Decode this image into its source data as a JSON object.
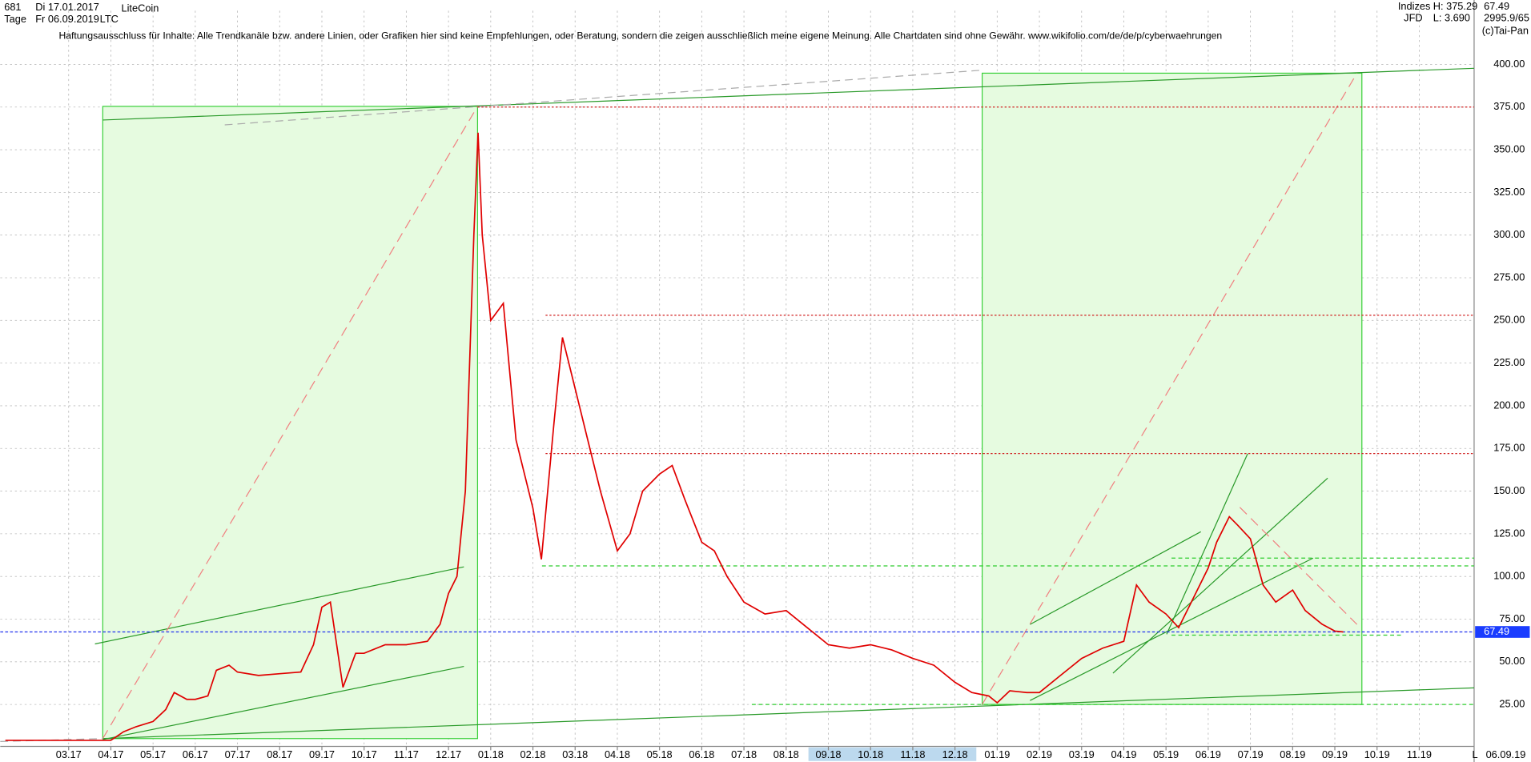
{
  "header": {
    "count": "681",
    "start": "Di 17.01.2017",
    "period": "Tage",
    "end": "Fr 06.09.2019",
    "name": "LiteCoin",
    "symbol": "LTC",
    "group": "Indizes",
    "source": "JFD",
    "high": "H: 375.29",
    "low": "L: 3.690",
    "volume": "2995.9/65",
    "copyright": "(c)Tai-Pan",
    "disclaimer": "Haftungsausschluss für Inhalte: Alle Trendkanäle bzw. andere Linien, oder Grafiken hier sind keine Empfehlungen, oder Beratung, sondern die zeigen ausschließlich meine eigene Meinung. Alle Chartdaten sind ohne Gewähr.  www.wikifolio.com/de/de/p/cyberwaehrungen",
    "date": "06.09.19",
    "scale": "L"
  },
  "chart_data": {
    "type": "line",
    "last_price": 67.49,
    "levels": [
      375,
      253,
      172
    ],
    "x": [
      0.5,
      1,
      1.5,
      2,
      2.5,
      3,
      3.3,
      3.6,
      4,
      4.3,
      4.5,
      4.8,
      5,
      5.3,
      5.5,
      5.8,
      6,
      6.5,
      7,
      7.5,
      7.8,
      8,
      8.2,
      8.5,
      8.8,
      9,
      9.5,
      10,
      10.5,
      10.8,
      11,
      11.2,
      11.4,
      11.6,
      11.7,
      11.8,
      12,
      12.3,
      12.6,
      13,
      13.2,
      13.5,
      13.7,
      14,
      14.3,
      14.6,
      15,
      15.3,
      15.6,
      16,
      16.3,
      16.6,
      17,
      17.3,
      17.6,
      18,
      18.5,
      19,
      19.5,
      20,
      20.5,
      21,
      21.5,
      22,
      22.5,
      23,
      23.4,
      23.8,
      24,
      24.3,
      24.7,
      25,
      25.5,
      26,
      26.5,
      27,
      27.3,
      27.6,
      28,
      28.3,
      28.6,
      29,
      29.2,
      29.5,
      29.7,
      30,
      30.3,
      30.6,
      31,
      31.3,
      31.7,
      32,
      32.2
    ],
    "series": [
      {
        "name": "LTC",
        "color": "#e00000",
        "values": [
          4,
          4,
          4,
          4,
          4,
          4,
          9,
          12,
          15,
          22,
          32,
          28,
          28,
          30,
          45,
          48,
          44,
          42,
          43,
          44,
          60,
          82,
          85,
          35,
          55,
          55,
          60,
          60,
          62,
          72,
          90,
          100,
          150,
          300,
          360,
          300,
          250,
          260,
          180,
          140,
          110,
          190,
          240,
          210,
          180,
          150,
          115,
          125,
          150,
          160,
          165,
          145,
          120,
          115,
          100,
          85,
          78,
          80,
          70,
          60,
          58,
          60,
          57,
          52,
          48,
          38,
          32,
          30,
          26,
          33,
          32,
          32,
          42,
          52,
          58,
          62,
          95,
          85,
          78,
          70,
          85,
          105,
          120,
          135,
          130,
          122,
          95,
          85,
          92,
          80,
          72,
          68,
          67.49
        ]
      }
    ],
    "xlim": [
      0.38,
      35.3
    ],
    "ylim": [
      3.3,
      420
    ],
    "xticks": [
      {
        "value": 2,
        "label": "03.17"
      },
      {
        "value": 3,
        "label": "04.17"
      },
      {
        "value": 4,
        "label": "05.17"
      },
      {
        "value": 5,
        "label": "06.17"
      },
      {
        "value": 6,
        "label": "07.17"
      },
      {
        "value": 7,
        "label": "08.17"
      },
      {
        "value": 8,
        "label": "09.17"
      },
      {
        "value": 9,
        "label": "10.17"
      },
      {
        "value": 10,
        "label": "11.17"
      },
      {
        "value": 11,
        "label": "12.17"
      },
      {
        "value": 12,
        "label": "01.18"
      },
      {
        "value": 13,
        "label": "02.18"
      },
      {
        "value": 14,
        "label": "03.18"
      },
      {
        "value": 15,
        "label": "04.18"
      },
      {
        "value": 16,
        "label": "05.18"
      },
      {
        "value": 17,
        "label": "06.18"
      },
      {
        "value": 18,
        "label": "07.18"
      },
      {
        "value": 19,
        "label": "08.18"
      },
      {
        "value": 20,
        "label": "09.18"
      },
      {
        "value": 21,
        "label": "10.18"
      },
      {
        "value": 22,
        "label": "11.18"
      },
      {
        "value": 23,
        "label": "12.18"
      },
      {
        "value": 24,
        "label": "01.19"
      },
      {
        "value": 25,
        "label": "02.19"
      },
      {
        "value": 26,
        "label": "03.19"
      },
      {
        "value": 27,
        "label": "04.19"
      },
      {
        "value": 28,
        "label": "05.19"
      },
      {
        "value": 29,
        "label": "06.19"
      },
      {
        "value": 30,
        "label": "07.19"
      },
      {
        "value": 31,
        "label": "08.19"
      },
      {
        "value": 32,
        "label": "09.19"
      },
      {
        "value": 33,
        "label": "10.19"
      },
      {
        "value": 34,
        "label": "11.19"
      }
    ],
    "yticks": [
      {
        "value": 25,
        "label": "25.00"
      },
      {
        "value": 50,
        "label": "50.00"
      },
      {
        "value": 75,
        "label": "75.00"
      },
      {
        "value": 100,
        "label": "100.00"
      },
      {
        "value": 125,
        "label": "125.00"
      },
      {
        "value": 150,
        "label": "150.00"
      },
      {
        "value": 175,
        "label": "175.00"
      },
      {
        "value": 200,
        "label": "200.00"
      },
      {
        "value": 225,
        "label": "225.00"
      },
      {
        "value": 250,
        "label": "250.00"
      },
      {
        "value": 275,
        "label": "275.00"
      },
      {
        "value": 300,
        "label": "300.00"
      },
      {
        "value": 325,
        "label": "325.00"
      },
      {
        "value": 350,
        "label": "350.00"
      },
      {
        "value": 375,
        "label": "375.00"
      },
      {
        "value": 400,
        "label": "400.00"
      }
    ],
    "grid": true
  }
}
